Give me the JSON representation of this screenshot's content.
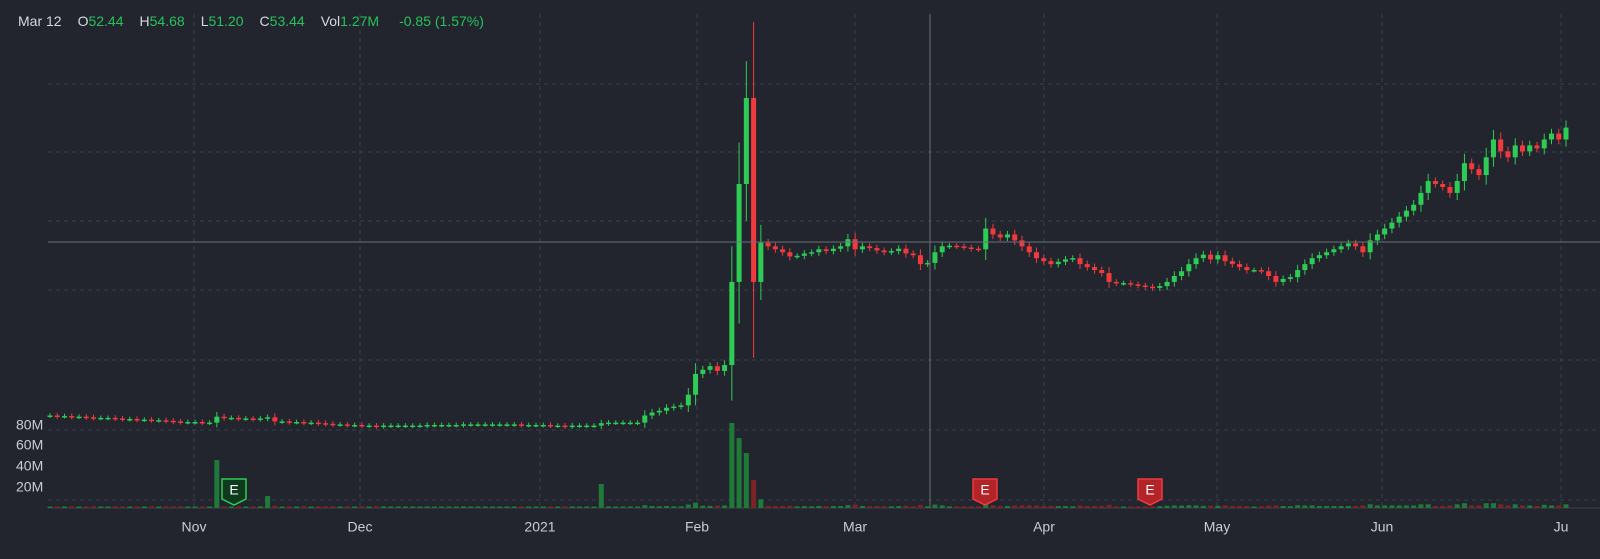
{
  "legend": {
    "date": "Mar 12",
    "open_label": "O",
    "open": "52.44",
    "high_label": "H",
    "high": "54.68",
    "low_label": "L",
    "low": "51.20",
    "close_label": "C",
    "close": "53.44",
    "vol_label": "Vol",
    "vol": "1.27M",
    "change": "-0.85 (1.57%)"
  },
  "colors": {
    "background": "#22252e",
    "up": "#2ecc55",
    "down": "#f03a3e",
    "grid": "#3a3e48",
    "crosshair": "#6a6e78"
  },
  "chart_data": {
    "type": "candlestick",
    "x_ticks": [
      "Nov",
      "Dec",
      "2021",
      "Feb",
      "Mar",
      "Apr",
      "May",
      "Jun",
      "Ju"
    ],
    "volume_axis": {
      "ticks": [
        "80M",
        "60M",
        "40M",
        "20M"
      ],
      "range": [
        0,
        90
      ]
    },
    "grid": true,
    "earnings_markers": [
      {
        "label": "E",
        "near": "Nov",
        "color": "green"
      },
      {
        "label": "E",
        "near": "Mar",
        "color": "red"
      },
      {
        "label": "E",
        "near": "Apr",
        "color": "red"
      }
    ],
    "crosshair": {
      "date": "Mar 12"
    },
    "price_series_close": [
      17.5,
      17.4,
      17.4,
      17.3,
      17.3,
      17.2,
      17.1,
      17.1,
      17.1,
      17.0,
      16.9,
      16.9,
      16.8,
      16.8,
      16.7,
      16.7,
      16.6,
      16.5,
      16.4,
      16.4,
      16.4,
      16.3,
      16.3,
      17.3,
      17.1,
      17.1,
      17.0,
      17.0,
      16.9,
      17.0,
      17.2,
      16.5,
      16.5,
      16.4,
      16.4,
      16.3,
      16.3,
      16.2,
      16.1,
      16.0,
      16.0,
      15.9,
      15.9,
      15.8,
      15.8,
      15.7,
      15.8,
      15.8,
      15.8,
      15.8,
      15.8,
      15.8,
      15.9,
      15.9,
      15.9,
      15.9,
      15.9,
      16.0,
      16.0,
      16.0,
      16.0,
      16.0,
      16.0,
      16.0,
      16.0,
      15.9,
      15.9,
      15.9,
      15.9,
      15.8,
      15.8,
      15.7,
      15.8,
      15.8,
      15.8,
      15.8,
      16.2,
      16.3,
      16.3,
      16.3,
      16.3,
      16.3,
      17.5,
      18.0,
      18.3,
      18.8,
      19.0,
      19.2,
      21.0,
      24.5,
      25.2,
      25.8,
      25.0,
      26.0,
      40.0,
      56.5,
      71.0,
      40.0,
      46.6,
      46.0,
      45.5,
      45.0,
      44.3,
      44.4,
      44.8,
      45.0,
      45.5,
      45.2,
      45.6,
      46.0,
      47.2,
      45.5,
      46.0,
      45.7,
      45.3,
      45.0,
      45.2,
      45.6,
      44.8,
      44.5,
      43.0,
      43.2,
      45.0,
      46.0,
      46.1,
      46.0,
      45.8,
      45.6,
      45.5,
      49.0,
      48.0,
      47.5,
      48.0,
      47.0,
      46.0,
      45.0,
      44.0,
      43.5,
      43.0,
      43.4,
      43.8,
      44.0,
      43.0,
      42.5,
      42.0,
      41.5,
      40.0,
      39.8,
      39.8,
      39.6,
      39.4,
      39.2,
      39.0,
      39.3,
      40.0,
      41.0,
      41.8,
      43.0,
      44.0,
      44.6,
      43.8,
      44.5,
      43.5,
      43.0,
      42.5,
      42.0,
      42.0,
      41.8,
      41.0,
      40.0,
      40.5,
      40.8,
      42.0,
      43.0,
      44.0,
      44.5,
      45.0,
      45.5,
      46.0,
      46.5,
      46.0,
      45.0,
      47.0,
      48.0,
      49.0,
      50.0,
      51.0,
      52.0,
      53.0,
      55.0,
      57.0,
      56.5,
      56.0,
      55.0,
      57.0,
      60.0,
      59.0,
      58.0,
      61.0,
      64.0,
      62.0,
      61.0,
      63.0,
      62.0,
      63.0,
      62.5,
      64.0,
      65.0,
      64.0,
      66.0
    ]
  }
}
